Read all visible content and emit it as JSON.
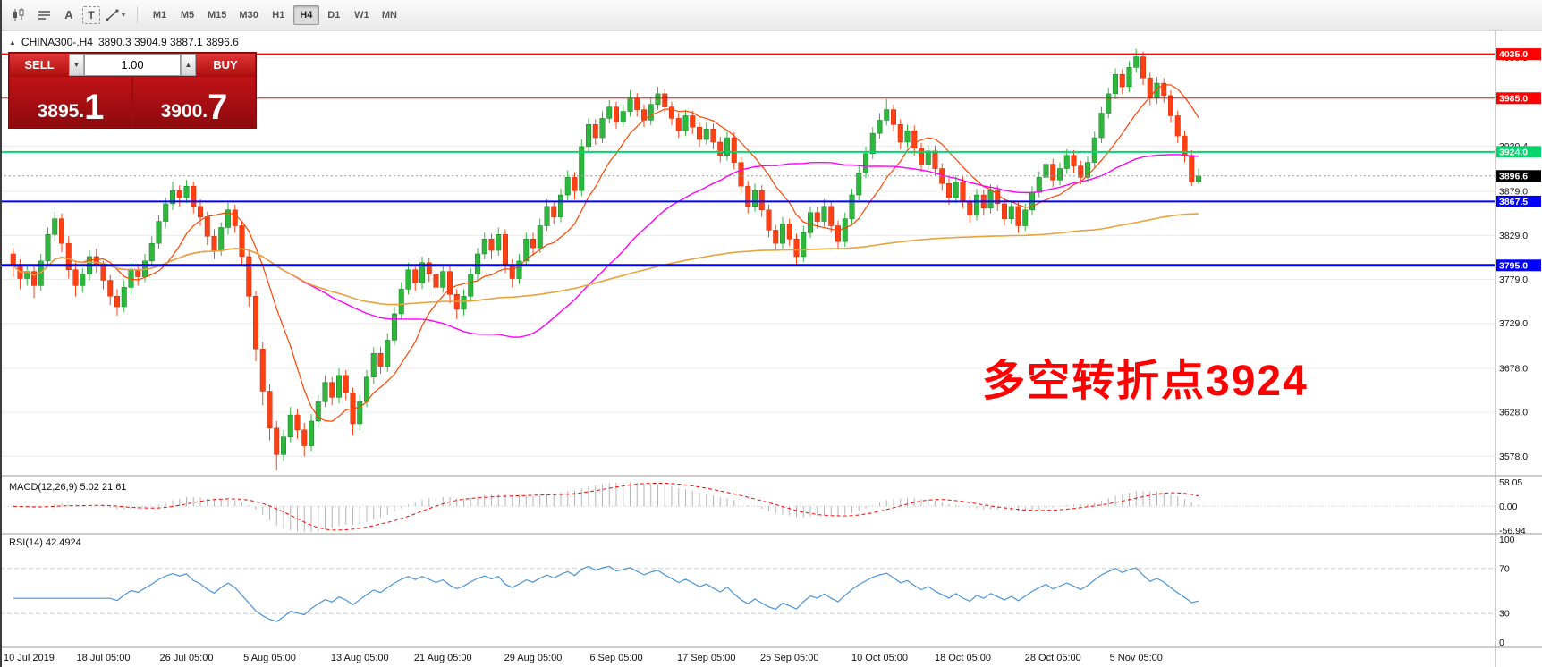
{
  "toolbar": {
    "text_tool": "A",
    "textbox_tool": "T",
    "dropdown_caret": "▾",
    "timeframes": [
      "M1",
      "M5",
      "M15",
      "M30",
      "H1",
      "H4",
      "D1",
      "W1",
      "MN"
    ],
    "active_timeframe": "H4"
  },
  "chart": {
    "collapse_glyph": "▲",
    "symbol_title": "CHINA300-,H4",
    "ohlc_text": "3890.3 3904.9 3887.1 3896.6",
    "annotation": {
      "text": "多空转折点3924",
      "color": "#ff0000"
    },
    "trade_panel": {
      "sell_label": "SELL",
      "buy_label": "BUY",
      "volume": "1.00",
      "spin_down": "▼",
      "spin_up": "▲",
      "sell_price": {
        "main": "3895.",
        "pip": "1"
      },
      "buy_price": {
        "main": "3900.",
        "pip": "7"
      }
    }
  },
  "chart_data": {
    "type": "candlestick",
    "symbol": "CHINA300-",
    "timeframe": "H4",
    "price_range": [
      3556,
      4062
    ],
    "colors": {
      "up": "#2db83d",
      "down": "#ff4013",
      "ma_fast": "#ff4500",
      "ma_mid": "#ff00ff",
      "ma_slow": "#e8a33d",
      "rsi": "#4a94d8",
      "macd_signal": "#ff0000",
      "macd_hist": "#b4b4b4"
    },
    "levels": [
      {
        "value": 4035.0,
        "label": "4035.0",
        "color": "#ff0000",
        "width": 2
      },
      {
        "value": 3985.0,
        "label": "3985.0",
        "color": "#ff0000",
        "width": 1
      },
      {
        "value": 3924.0,
        "label": "3924.0",
        "color": "#00d66b",
        "width": 2
      },
      {
        "value": 3867.5,
        "label": "3867.5",
        "color": "#0000ff",
        "width": 2
      },
      {
        "value": 3795.0,
        "label": "3795.0",
        "color": "#0000ff",
        "width": 3
      }
    ],
    "current_price": {
      "value": 3896.6,
      "label": "3896.6"
    },
    "y_ticks": [
      {
        "value": 4030.8,
        "label": "4030.8"
      },
      {
        "value": 3930.4,
        "label": "3930.4"
      },
      {
        "value": 3879.0,
        "label": "3879.0"
      },
      {
        "value": 3829.0,
        "label": "3829.0"
      },
      {
        "value": 3779.0,
        "label": "3779.0"
      },
      {
        "value": 3729.0,
        "label": "3729.0"
      },
      {
        "value": 3678.0,
        "label": "3678.0"
      },
      {
        "value": 3628.0,
        "label": "3628.0"
      },
      {
        "value": 3578.0,
        "label": "3578.0"
      }
    ],
    "x_labels": [
      {
        "i": 0,
        "t": "10 Jul 2019"
      },
      {
        "i": 13,
        "t": "18 Jul 05:00"
      },
      {
        "i": 25,
        "t": "26 Jul 05:00"
      },
      {
        "i": 37,
        "t": "5 Aug 05:00"
      },
      {
        "i": 50,
        "t": "13 Aug 05:00"
      },
      {
        "i": 62,
        "t": "21 Aug 05:00"
      },
      {
        "i": 75,
        "t": "29 Aug 05:00"
      },
      {
        "i": 87,
        "t": "6 Sep 05:00"
      },
      {
        "i": 100,
        "t": "17 Sep 05:00"
      },
      {
        "i": 112,
        "t": "25 Sep 05:00"
      },
      {
        "i": 125,
        "t": "10 Oct 05:00"
      },
      {
        "i": 137,
        "t": "18 Oct 05:00"
      },
      {
        "i": 150,
        "t": "28 Oct 05:00"
      },
      {
        "i": 162,
        "t": "5 Nov 05:00"
      }
    ],
    "overlays": [
      {
        "name": "ma-fast-line",
        "period": 10,
        "color_key": "ma_fast",
        "width": 1.2
      },
      {
        "name": "ma-mid-line",
        "period": 40,
        "color_key": "ma_mid",
        "width": 1.4
      },
      {
        "name": "ma-slow-line",
        "period": 150,
        "color_key": "ma_slow",
        "width": 1.6
      }
    ],
    "indicators": {
      "macd": {
        "label": "MACD(12,26,9)",
        "value": "5.02 21.61",
        "params": [
          12,
          26,
          9
        ],
        "axis": [
          "58.05",
          "0.00",
          "-56.94"
        ]
      },
      "rsi": {
        "label": "RSI(14)",
        "value": "42.4924",
        "period": 14,
        "axis": [
          "100",
          "70",
          "30",
          "0"
        ],
        "levels": [
          70,
          30
        ]
      }
    },
    "candles": [
      [
        3808,
        3815,
        3782,
        3795
      ],
      [
        3795,
        3802,
        3768,
        3780
      ],
      [
        3780,
        3796,
        3772,
        3788
      ],
      [
        3788,
        3794,
        3758,
        3772
      ],
      [
        3772,
        3808,
        3766,
        3800
      ],
      [
        3800,
        3838,
        3794,
        3830
      ],
      [
        3830,
        3856,
        3822,
        3848
      ],
      [
        3848,
        3854,
        3810,
        3820
      ],
      [
        3820,
        3828,
        3780,
        3790
      ],
      [
        3790,
        3798,
        3760,
        3772
      ],
      [
        3772,
        3792,
        3764,
        3785
      ],
      [
        3785,
        3812,
        3778,
        3805
      ],
      [
        3805,
        3814,
        3786,
        3795
      ],
      [
        3795,
        3800,
        3768,
        3778
      ],
      [
        3778,
        3784,
        3750,
        3760
      ],
      [
        3760,
        3768,
        3738,
        3748
      ],
      [
        3748,
        3778,
        3742,
        3770
      ],
      [
        3770,
        3798,
        3762,
        3790
      ],
      [
        3790,
        3796,
        3772,
        3782
      ],
      [
        3782,
        3808,
        3776,
        3800
      ],
      [
        3800,
        3828,
        3794,
        3820
      ],
      [
        3820,
        3852,
        3814,
        3845
      ],
      [
        3845,
        3872,
        3838,
        3865
      ],
      [
        3865,
        3890,
        3858,
        3880
      ],
      [
        3880,
        3886,
        3862,
        3872
      ],
      [
        3872,
        3892,
        3866,
        3885
      ],
      [
        3885,
        3890,
        3854,
        3862
      ],
      [
        3862,
        3870,
        3840,
        3850
      ],
      [
        3850,
        3856,
        3818,
        3828
      ],
      [
        3828,
        3836,
        3802,
        3812
      ],
      [
        3812,
        3844,
        3806,
        3838
      ],
      [
        3838,
        3866,
        3830,
        3858
      ],
      [
        3858,
        3864,
        3832,
        3840
      ],
      [
        3840,
        3846,
        3796,
        3805
      ],
      [
        3805,
        3812,
        3748,
        3760
      ],
      [
        3760,
        3766,
        3686,
        3700
      ],
      [
        3700,
        3708,
        3636,
        3652
      ],
      [
        3652,
        3660,
        3596,
        3610
      ],
      [
        3610,
        3618,
        3562,
        3580
      ],
      [
        3580,
        3608,
        3572,
        3600
      ],
      [
        3600,
        3634,
        3594,
        3625
      ],
      [
        3625,
        3632,
        3598,
        3608
      ],
      [
        3608,
        3616,
        3578,
        3590
      ],
      [
        3590,
        3626,
        3584,
        3618
      ],
      [
        3618,
        3648,
        3610,
        3640
      ],
      [
        3640,
        3670,
        3634,
        3662
      ],
      [
        3662,
        3668,
        3636,
        3645
      ],
      [
        3645,
        3678,
        3638,
        3670
      ],
      [
        3670,
        3676,
        3642,
        3650
      ],
      [
        3650,
        3656,
        3602,
        3615
      ],
      [
        3615,
        3648,
        3608,
        3640
      ],
      [
        3640,
        3676,
        3634,
        3668
      ],
      [
        3668,
        3702,
        3660,
        3695
      ],
      [
        3695,
        3702,
        3672,
        3680
      ],
      [
        3680,
        3718,
        3674,
        3710
      ],
      [
        3710,
        3748,
        3704,
        3740
      ],
      [
        3740,
        3776,
        3734,
        3768
      ],
      [
        3768,
        3798,
        3762,
        3790
      ],
      [
        3790,
        3796,
        3766,
        3775
      ],
      [
        3775,
        3805,
        3768,
        3798
      ],
      [
        3798,
        3804,
        3776,
        3785
      ],
      [
        3785,
        3792,
        3760,
        3770
      ],
      [
        3770,
        3796,
        3764,
        3788
      ],
      [
        3788,
        3794,
        3752,
        3762
      ],
      [
        3762,
        3768,
        3734,
        3745
      ],
      [
        3745,
        3768,
        3738,
        3760
      ],
      [
        3760,
        3792,
        3754,
        3785
      ],
      [
        3785,
        3815,
        3778,
        3808
      ],
      [
        3808,
        3832,
        3802,
        3825
      ],
      [
        3825,
        3831,
        3802,
        3812
      ],
      [
        3812,
        3838,
        3806,
        3830
      ],
      [
        3830,
        3836,
        3786,
        3795
      ],
      [
        3795,
        3802,
        3770,
        3780
      ],
      [
        3780,
        3808,
        3774,
        3800
      ],
      [
        3800,
        3832,
        3794,
        3825
      ],
      [
        3825,
        3832,
        3806,
        3815
      ],
      [
        3815,
        3848,
        3809,
        3840
      ],
      [
        3840,
        3870,
        3834,
        3862
      ],
      [
        3862,
        3868,
        3842,
        3850
      ],
      [
        3850,
        3882,
        3844,
        3875
      ],
      [
        3875,
        3903,
        3869,
        3895
      ],
      [
        3895,
        3901,
        3870,
        3880
      ],
      [
        3880,
        3938,
        3874,
        3930
      ],
      [
        3930,
        3962,
        3924,
        3955
      ],
      [
        3955,
        3961,
        3932,
        3940
      ],
      [
        3940,
        3970,
        3934,
        3962
      ],
      [
        3962,
        3983,
        3956,
        3975
      ],
      [
        3975,
        3981,
        3950,
        3958
      ],
      [
        3958,
        3978,
        3952,
        3970
      ],
      [
        3970,
        3994,
        3964,
        3985
      ],
      [
        3985,
        3991,
        3964,
        3972
      ],
      [
        3972,
        3978,
        3952,
        3960
      ],
      [
        3960,
        3986,
        3954,
        3978
      ],
      [
        3978,
        3998,
        3972,
        3990
      ],
      [
        3990,
        3996,
        3968,
        3975
      ],
      [
        3975,
        3981,
        3954,
        3962
      ],
      [
        3962,
        3968,
        3940,
        3948
      ],
      [
        3948,
        3972,
        3942,
        3965
      ],
      [
        3965,
        3971,
        3944,
        3952
      ],
      [
        3952,
        3958,
        3930,
        3938
      ],
      [
        3938,
        3958,
        3932,
        3950
      ],
      [
        3950,
        3956,
        3927,
        3935
      ],
      [
        3935,
        3941,
        3912,
        3920
      ],
      [
        3920,
        3948,
        3914,
        3940
      ],
      [
        3940,
        3946,
        3904,
        3912
      ],
      [
        3912,
        3918,
        3877,
        3885
      ],
      [
        3885,
        3891,
        3854,
        3862
      ],
      [
        3862,
        3888,
        3856,
        3880
      ],
      [
        3880,
        3886,
        3850,
        3858
      ],
      [
        3858,
        3864,
        3827,
        3835
      ],
      [
        3835,
        3841,
        3812,
        3820
      ],
      [
        3820,
        3850,
        3814,
        3842
      ],
      [
        3842,
        3848,
        3817,
        3825
      ],
      [
        3825,
        3831,
        3795,
        3805
      ],
      [
        3805,
        3840,
        3799,
        3832
      ],
      [
        3832,
        3862,
        3826,
        3855
      ],
      [
        3855,
        3861,
        3837,
        3845
      ],
      [
        3845,
        3870,
        3839,
        3862
      ],
      [
        3862,
        3868,
        3832,
        3840
      ],
      [
        3840,
        3846,
        3814,
        3822
      ],
      [
        3822,
        3855,
        3816,
        3848
      ],
      [
        3848,
        3882,
        3842,
        3875
      ],
      [
        3875,
        3908,
        3869,
        3900
      ],
      [
        3900,
        3930,
        3894,
        3922
      ],
      [
        3922,
        3952,
        3916,
        3945
      ],
      [
        3945,
        3968,
        3939,
        3960
      ],
      [
        3960,
        3984,
        3954,
        3972
      ],
      [
        3972,
        3978,
        3947,
        3955
      ],
      [
        3955,
        3961,
        3927,
        3935
      ],
      [
        3935,
        3955,
        3929,
        3948
      ],
      [
        3948,
        3954,
        3920,
        3928
      ],
      [
        3928,
        3934,
        3902,
        3910
      ],
      [
        3910,
        3932,
        3904,
        3925
      ],
      [
        3925,
        3931,
        3897,
        3905
      ],
      [
        3905,
        3911,
        3880,
        3888
      ],
      [
        3888,
        3894,
        3864,
        3872
      ],
      [
        3872,
        3897,
        3866,
        3890
      ],
      [
        3890,
        3896,
        3860,
        3868
      ],
      [
        3868,
        3874,
        3844,
        3852
      ],
      [
        3852,
        3882,
        3846,
        3875
      ],
      [
        3875,
        3881,
        3852,
        3860
      ],
      [
        3860,
        3887,
        3854,
        3880
      ],
      [
        3880,
        3886,
        3857,
        3865
      ],
      [
        3865,
        3871,
        3840,
        3848
      ],
      [
        3848,
        3869,
        3842,
        3862
      ],
      [
        3862,
        3868,
        3832,
        3840
      ],
      [
        3840,
        3865,
        3834,
        3858
      ],
      [
        3858,
        3885,
        3852,
        3878
      ],
      [
        3878,
        3902,
        3872,
        3895
      ],
      [
        3895,
        3917,
        3889,
        3910
      ],
      [
        3910,
        3916,
        3884,
        3892
      ],
      [
        3892,
        3912,
        3886,
        3905
      ],
      [
        3905,
        3927,
        3899,
        3920
      ],
      [
        3920,
        3926,
        3900,
        3908
      ],
      [
        3908,
        3914,
        3887,
        3895
      ],
      [
        3895,
        3919,
        3889,
        3912
      ],
      [
        3912,
        3947,
        3906,
        3940
      ],
      [
        3940,
        3975,
        3934,
        3968
      ],
      [
        3968,
        3997,
        3962,
        3990
      ],
      [
        3990,
        4019,
        3984,
        4012
      ],
      [
        4012,
        4018,
        3990,
        3998
      ],
      [
        3998,
        4027,
        3992,
        4020
      ],
      [
        4020,
        4041,
        4014,
        4032
      ],
      [
        4032,
        4038,
        4000,
        4008
      ],
      [
        4008,
        4014,
        3977,
        3985
      ],
      [
        3985,
        4009,
        3979,
        4002
      ],
      [
        4002,
        4008,
        3980,
        3988
      ],
      [
        3988,
        3994,
        3957,
        3965
      ],
      [
        3965,
        3971,
        3934,
        3942
      ],
      [
        3942,
        3948,
        3912,
        3920
      ],
      [
        3920,
        3926,
        3885,
        3890
      ],
      [
        3890.3,
        3904.9,
        3887.1,
        3896.6
      ]
    ]
  }
}
